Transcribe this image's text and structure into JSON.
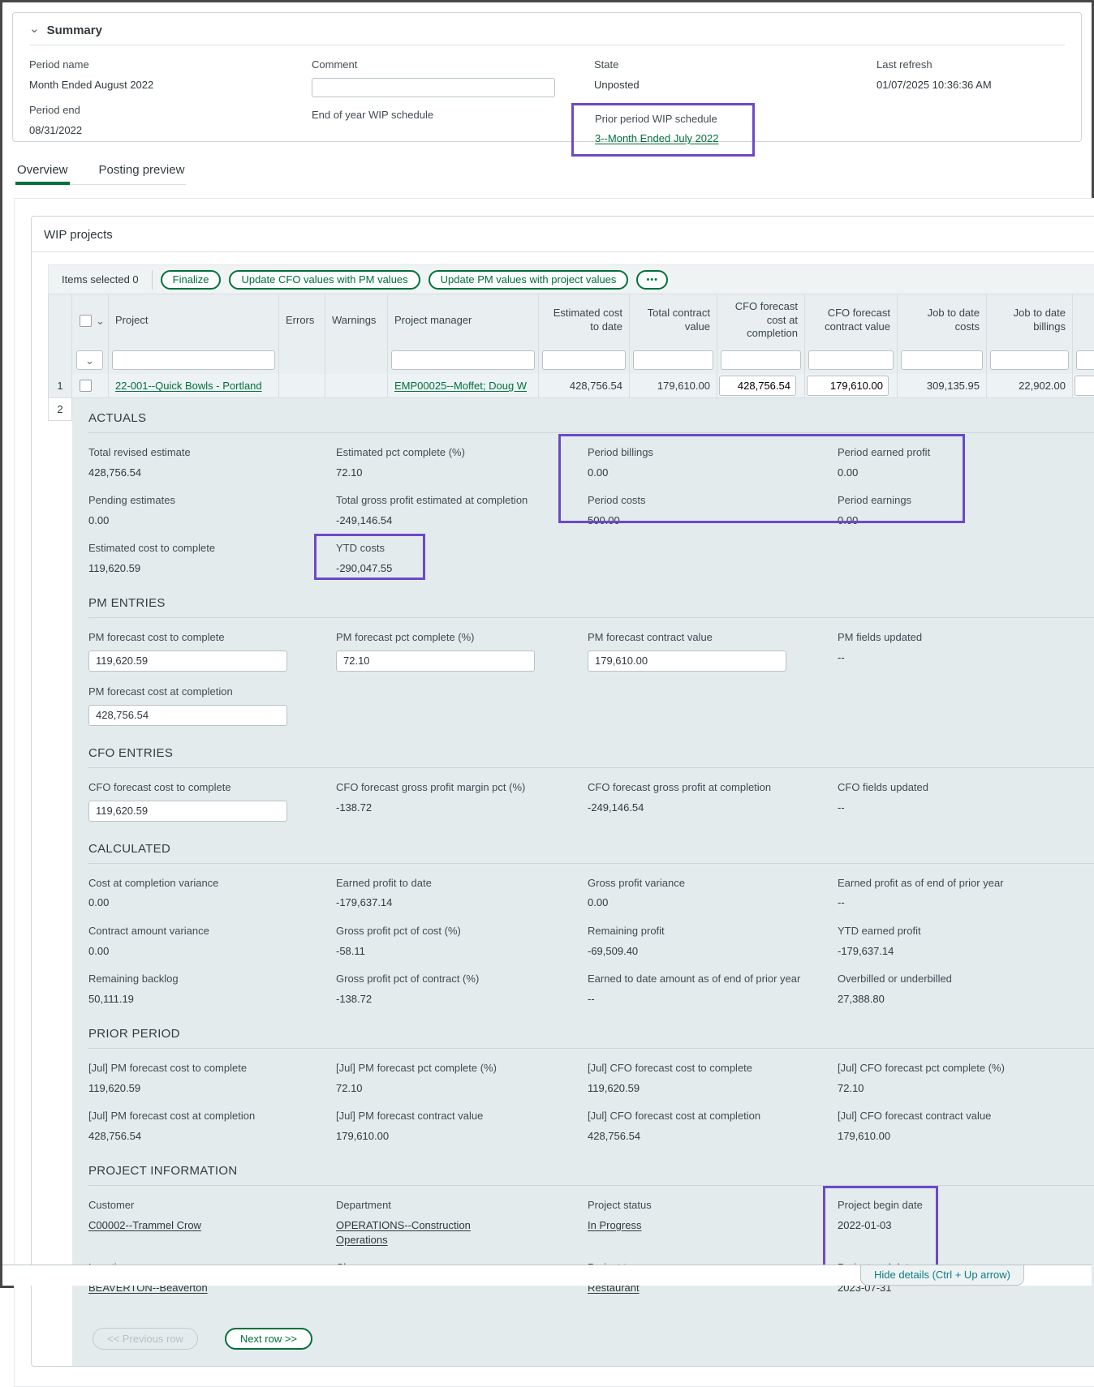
{
  "colors": {
    "accent_green": "#00703c",
    "annotation_purple": "#6d49c8",
    "hide_tab_teal": "#0c7d85"
  },
  "icons": {
    "chevron_down": "⌄",
    "ellipsis": "•••"
  },
  "summary": {
    "title": "Summary",
    "period_name": {
      "label": "Period name",
      "value": "Month Ended August 2022"
    },
    "period_end": {
      "label": "Period end",
      "value": "08/31/2022"
    },
    "comment": {
      "label": "Comment",
      "value": ""
    },
    "eoy_wip": {
      "label": "End of year WIP schedule"
    },
    "state": {
      "label": "State",
      "value": "Unposted"
    },
    "prior_period": {
      "label": "Prior period WIP schedule",
      "link": "3--Month Ended July 2022"
    },
    "last_refresh": {
      "label": "Last refresh",
      "value": "01/07/2025 10:36:36 AM"
    }
  },
  "tabs": [
    {
      "label": "Overview",
      "active": true
    },
    {
      "label": "Posting preview",
      "active": false
    }
  ],
  "wip_table": {
    "title": "WIP projects",
    "items_selected": "Items selected 0",
    "actions": [
      "Finalize",
      "Update CFO values with PM values",
      "Update PM values with project values"
    ],
    "columns": [
      {
        "key": "project",
        "label": "Project"
      },
      {
        "key": "errors",
        "label": "Errors"
      },
      {
        "key": "warnings",
        "label": "Warnings"
      },
      {
        "key": "project_manager",
        "label": "Project manager"
      },
      {
        "key": "est_cost_to_date",
        "label": "Estimated cost to date"
      },
      {
        "key": "total_contract_value",
        "label": "Total contract value"
      },
      {
        "key": "cfo_cost_at_completion",
        "label": "CFO forecast cost at completion"
      },
      {
        "key": "cfo_contract_value",
        "label": "CFO forecast contract value"
      },
      {
        "key": "jtd_costs",
        "label": "Job to date costs"
      },
      {
        "key": "jtd_billings",
        "label": "Job to date billings"
      }
    ],
    "rows": [
      {
        "num": "1",
        "cells": {
          "project": {
            "text": "22-001--Quick Bowls - Portland",
            "link": true
          },
          "errors": "",
          "warnings": "",
          "project_manager": {
            "text": "EMP00025--Moffet; Doug W",
            "link": true
          },
          "est_cost_to_date": "428,756.54",
          "total_contract_value": "179,610.00",
          "cfo_cost_at_completion": {
            "text": "428,756.54",
            "editable": true
          },
          "cfo_contract_value": {
            "text": "179,610.00",
            "editable": true
          },
          "jtd_costs": "309,135.95",
          "jtd_billings": "22,902.00"
        }
      },
      {
        "num": "2"
      }
    ]
  },
  "details": {
    "sections": [
      {
        "title": "ACTUALS",
        "columns": [
          [
            {
              "label": "Total revised estimate",
              "value": "428,756.54"
            },
            {
              "label": "Pending estimates",
              "value": "0.00"
            },
            {
              "label": "Estimated cost to complete",
              "value": "119,620.59"
            }
          ],
          [
            {
              "label": "Estimated pct complete (%)",
              "value": "72.10"
            },
            {
              "label": "Total gross profit estimated at completion",
              "value": "-249,146.54"
            },
            {
              "label": "YTD costs",
              "value": "-290,047.55"
            }
          ],
          [
            {
              "label": "Period billings",
              "value": "0.00"
            },
            {
              "label": "Period costs",
              "value": "500.00"
            }
          ],
          [
            {
              "label": "Period earned profit",
              "value": "0.00"
            },
            {
              "label": "Period earnings",
              "value": "0.00"
            }
          ]
        ],
        "annotations": [
          {
            "css": "ann-period-block"
          },
          {
            "css": "ann-ytd"
          }
        ]
      },
      {
        "title": "PM ENTRIES",
        "columns": [
          [
            {
              "label": "PM forecast cost to complete",
              "value": "119,620.59",
              "type": "input"
            },
            {
              "label": "PM forecast cost at completion",
              "value": "428,756.54",
              "type": "input"
            }
          ],
          [
            {
              "label": "PM forecast pct complete (%)",
              "value": "72.10",
              "type": "input"
            }
          ],
          [
            {
              "label": "PM forecast contract value",
              "value": "179,610.00",
              "type": "input"
            }
          ],
          [
            {
              "label": "PM fields updated",
              "value": "--"
            }
          ]
        ]
      },
      {
        "title": "CFO ENTRIES",
        "columns": [
          [
            {
              "label": "CFO forecast cost to complete",
              "value": "119,620.59",
              "type": "input"
            }
          ],
          [
            {
              "label": "CFO forecast gross profit margin pct (%)",
              "value": "-138.72"
            }
          ],
          [
            {
              "label": "CFO forecast gross profit at completion",
              "value": "-249,146.54"
            }
          ],
          [
            {
              "label": "CFO fields updated",
              "value": "--"
            }
          ]
        ]
      },
      {
        "title": "CALCULATED",
        "columns": [
          [
            {
              "label": "Cost at completion variance",
              "value": "0.00"
            },
            {
              "label": "Contract amount variance",
              "value": "0.00"
            },
            {
              "label": "Remaining backlog",
              "value": "50,111.19"
            }
          ],
          [
            {
              "label": "Earned profit to date",
              "value": "-179,637.14"
            },
            {
              "label": "Gross profit pct of cost (%)",
              "value": "-58.11"
            },
            {
              "label": "Gross profit pct of contract (%)",
              "value": "-138.72"
            }
          ],
          [
            {
              "label": "Gross profit variance",
              "value": "0.00"
            },
            {
              "label": "Remaining profit",
              "value": "-69,509.40"
            },
            {
              "label": "Earned to date amount as of end of prior year",
              "value": "--"
            }
          ],
          [
            {
              "label": "Earned profit as of end of prior year",
              "value": "--"
            },
            {
              "label": "YTD earned profit",
              "value": "-179,637.14"
            },
            {
              "label": "Overbilled or underbilled",
              "value": "27,388.80"
            }
          ]
        ]
      },
      {
        "title": "PRIOR PERIOD",
        "columns": [
          [
            {
              "label": "[Jul] PM forecast cost to complete",
              "value": "119,620.59"
            },
            {
              "label": "[Jul] PM forecast cost at completion",
              "value": "428,756.54"
            }
          ],
          [
            {
              "label": "[Jul] PM forecast pct complete (%)",
              "value": "72.10"
            },
            {
              "label": "[Jul] PM forecast contract value",
              "value": "179,610.00"
            }
          ],
          [
            {
              "label": "[Jul] CFO forecast cost to complete",
              "value": "119,620.59"
            },
            {
              "label": "[Jul] CFO forecast cost at completion",
              "value": "428,756.54"
            }
          ],
          [
            {
              "label": "[Jul] CFO forecast pct complete (%)",
              "value": "72.10"
            },
            {
              "label": "[Jul] CFO forecast contract value",
              "value": "179,610.00"
            }
          ]
        ]
      },
      {
        "title": "PROJECT INFORMATION",
        "columns": [
          [
            {
              "label": "Customer",
              "value": "C00002--Trammel Crow",
              "type": "link"
            },
            {
              "label": "Location",
              "value": "BEAVERTON--Beaverton",
              "type": "link"
            }
          ],
          [
            {
              "label": "Department",
              "value": "OPERATIONS--Construction Operations",
              "type": "link"
            },
            {
              "label": "Class",
              "value": ""
            }
          ],
          [
            {
              "label": "Project status",
              "value": "In Progress",
              "type": "link"
            },
            {
              "label": "Project type",
              "value": "Restaurant",
              "type": "link"
            }
          ],
          [
            {
              "label": "Project begin date",
              "value": "2022-01-03"
            },
            {
              "label": "Project end date",
              "value": "2023-07-31"
            }
          ]
        ],
        "annotations": [
          {
            "css": "ann-dates"
          }
        ]
      }
    ]
  },
  "footer": {
    "previous": "<< Previous row",
    "next": "Next row >>",
    "hide_details": "Hide details (Ctrl + Up arrow)"
  }
}
